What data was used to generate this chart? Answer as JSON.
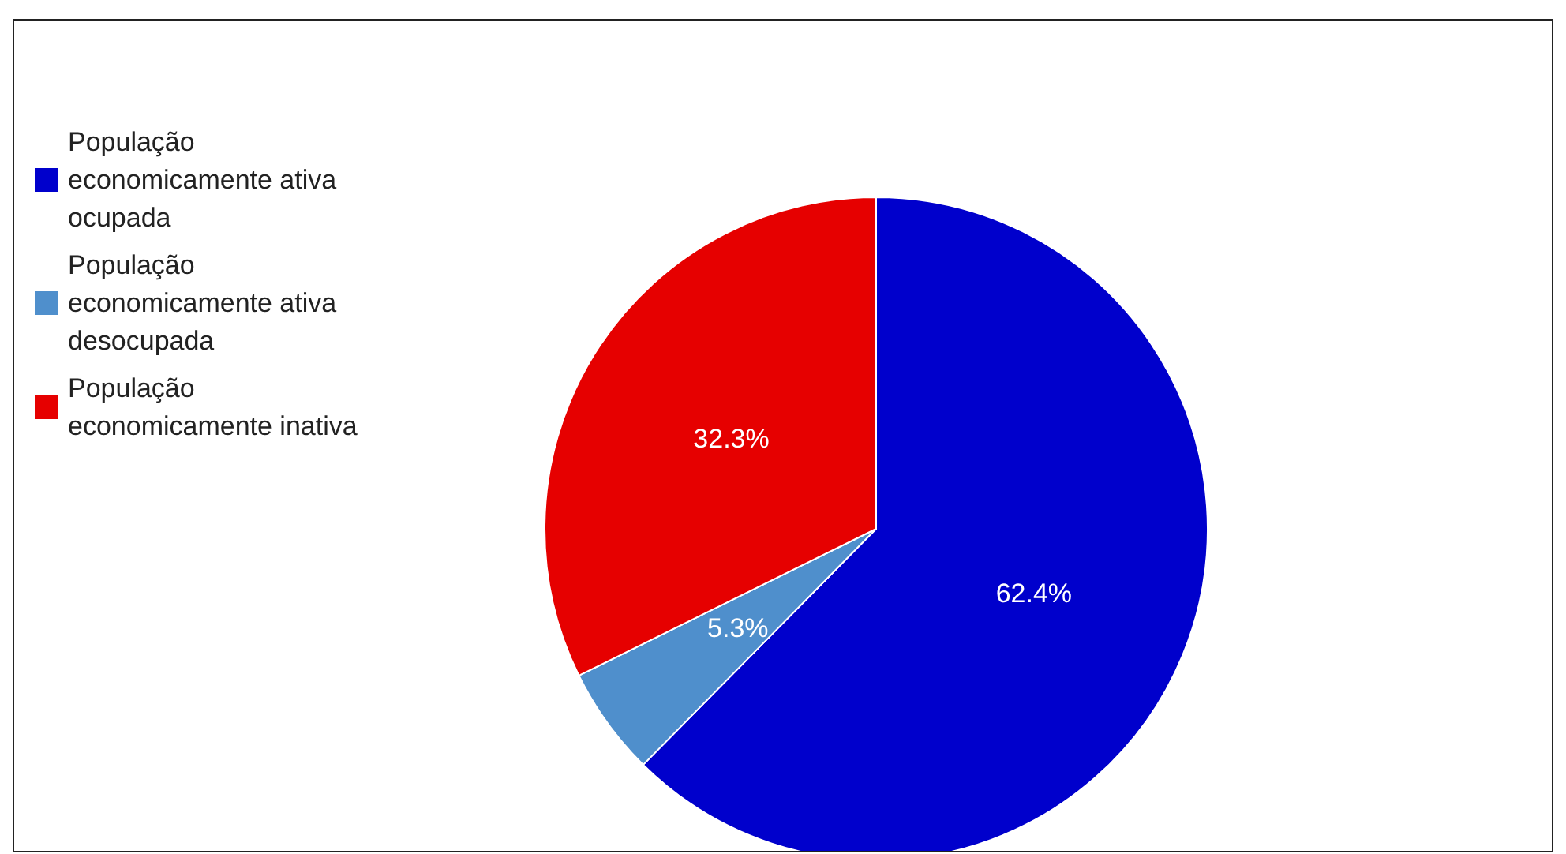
{
  "chart_data": {
    "type": "pie",
    "categories": [
      "População economicamente ativa ocupada",
      "População economicamente ativa desocupada",
      "População economicamente inativa"
    ],
    "values": [
      62.4,
      5.3,
      32.3
    ],
    "colors": [
      "#0000cc",
      "#4f8fcc",
      "#e60000"
    ],
    "value_labels": [
      "62.4%",
      "5.3%",
      "32.3%"
    ],
    "legend": "left"
  }
}
